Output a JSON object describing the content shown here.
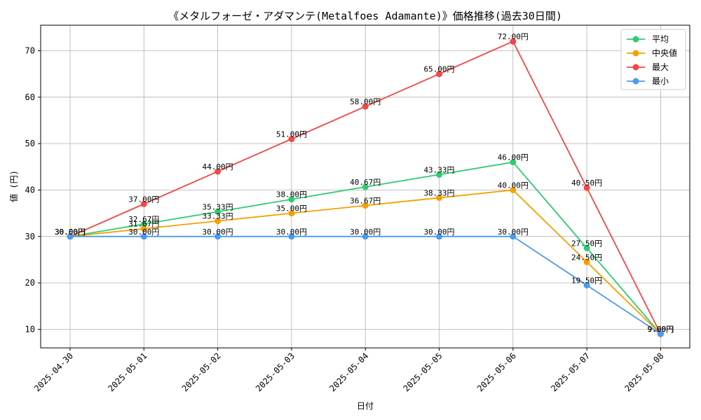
{
  "chart_data": {
    "type": "line",
    "title": "《メタルフォーゼ・アダマンテ(Metalfoes Adamante)》価格推移(過去30日間)",
    "xlabel": "日付",
    "ylabel": "値 (円)",
    "ylim": [
      6,
      75.5
    ],
    "yticks": [
      10,
      20,
      30,
      40,
      50,
      60,
      70
    ],
    "grid": true,
    "legend_position": "top-right",
    "label_suffix": "円",
    "categories": [
      "2025-04-30",
      "2025-05-01",
      "2025-05-02",
      "2025-05-03",
      "2025-05-04",
      "2025-05-05",
      "2025-05-06",
      "2025-05-07",
      "2025-05-08"
    ],
    "series": [
      {
        "name": "平均",
        "color": "#2ecc71",
        "values": [
          30.0,
          32.67,
          35.33,
          38.0,
          40.67,
          43.33,
          46.0,
          27.5,
          9.0
        ]
      },
      {
        "name": "中央値",
        "color": "#f5a000",
        "values": [
          30.0,
          31.67,
          33.33,
          35.0,
          36.67,
          38.33,
          40.0,
          24.5,
          9.0
        ]
      },
      {
        "name": "最大",
        "color": "#f04848",
        "values": [
          30.0,
          37.0,
          44.0,
          51.0,
          58.0,
          65.0,
          72.0,
          40.5,
          9.0
        ]
      },
      {
        "name": "最小",
        "color": "#4a9af2",
        "values": [
          30.0,
          30.0,
          30.0,
          30.0,
          30.0,
          30.0,
          30.0,
          19.5,
          9.0
        ]
      }
    ]
  }
}
